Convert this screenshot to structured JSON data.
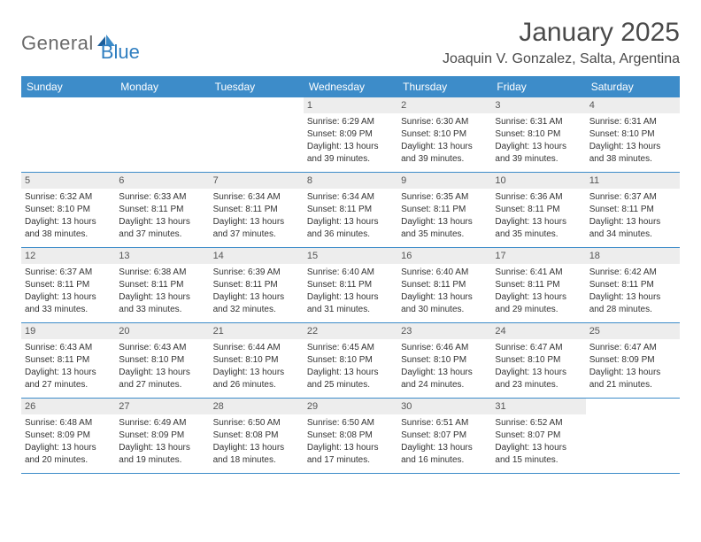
{
  "logo": {
    "text1": "General",
    "text2": "Blue"
  },
  "title": "January 2025",
  "location": "Joaquin V. Gonzalez, Salta, Argentina",
  "colors": {
    "header_bg": "#3d8cc9",
    "header_text": "#ffffff",
    "daynum_bg": "#ededed",
    "border": "#3d8cc9",
    "body_text": "#333333",
    "logo_gray": "#6a6a6a",
    "logo_blue": "#2f7ec0"
  },
  "weekdays": [
    "Sunday",
    "Monday",
    "Tuesday",
    "Wednesday",
    "Thursday",
    "Friday",
    "Saturday"
  ],
  "weeks": [
    [
      {
        "n": "",
        "lines": []
      },
      {
        "n": "",
        "lines": []
      },
      {
        "n": "",
        "lines": []
      },
      {
        "n": "1",
        "lines": [
          "Sunrise: 6:29 AM",
          "Sunset: 8:09 PM",
          "Daylight: 13 hours",
          "and 39 minutes."
        ]
      },
      {
        "n": "2",
        "lines": [
          "Sunrise: 6:30 AM",
          "Sunset: 8:10 PM",
          "Daylight: 13 hours",
          "and 39 minutes."
        ]
      },
      {
        "n": "3",
        "lines": [
          "Sunrise: 6:31 AM",
          "Sunset: 8:10 PM",
          "Daylight: 13 hours",
          "and 39 minutes."
        ]
      },
      {
        "n": "4",
        "lines": [
          "Sunrise: 6:31 AM",
          "Sunset: 8:10 PM",
          "Daylight: 13 hours",
          "and 38 minutes."
        ]
      }
    ],
    [
      {
        "n": "5",
        "lines": [
          "Sunrise: 6:32 AM",
          "Sunset: 8:10 PM",
          "Daylight: 13 hours",
          "and 38 minutes."
        ]
      },
      {
        "n": "6",
        "lines": [
          "Sunrise: 6:33 AM",
          "Sunset: 8:11 PM",
          "Daylight: 13 hours",
          "and 37 minutes."
        ]
      },
      {
        "n": "7",
        "lines": [
          "Sunrise: 6:34 AM",
          "Sunset: 8:11 PM",
          "Daylight: 13 hours",
          "and 37 minutes."
        ]
      },
      {
        "n": "8",
        "lines": [
          "Sunrise: 6:34 AM",
          "Sunset: 8:11 PM",
          "Daylight: 13 hours",
          "and 36 minutes."
        ]
      },
      {
        "n": "9",
        "lines": [
          "Sunrise: 6:35 AM",
          "Sunset: 8:11 PM",
          "Daylight: 13 hours",
          "and 35 minutes."
        ]
      },
      {
        "n": "10",
        "lines": [
          "Sunrise: 6:36 AM",
          "Sunset: 8:11 PM",
          "Daylight: 13 hours",
          "and 35 minutes."
        ]
      },
      {
        "n": "11",
        "lines": [
          "Sunrise: 6:37 AM",
          "Sunset: 8:11 PM",
          "Daylight: 13 hours",
          "and 34 minutes."
        ]
      }
    ],
    [
      {
        "n": "12",
        "lines": [
          "Sunrise: 6:37 AM",
          "Sunset: 8:11 PM",
          "Daylight: 13 hours",
          "and 33 minutes."
        ]
      },
      {
        "n": "13",
        "lines": [
          "Sunrise: 6:38 AM",
          "Sunset: 8:11 PM",
          "Daylight: 13 hours",
          "and 33 minutes."
        ]
      },
      {
        "n": "14",
        "lines": [
          "Sunrise: 6:39 AM",
          "Sunset: 8:11 PM",
          "Daylight: 13 hours",
          "and 32 minutes."
        ]
      },
      {
        "n": "15",
        "lines": [
          "Sunrise: 6:40 AM",
          "Sunset: 8:11 PM",
          "Daylight: 13 hours",
          "and 31 minutes."
        ]
      },
      {
        "n": "16",
        "lines": [
          "Sunrise: 6:40 AM",
          "Sunset: 8:11 PM",
          "Daylight: 13 hours",
          "and 30 minutes."
        ]
      },
      {
        "n": "17",
        "lines": [
          "Sunrise: 6:41 AM",
          "Sunset: 8:11 PM",
          "Daylight: 13 hours",
          "and 29 minutes."
        ]
      },
      {
        "n": "18",
        "lines": [
          "Sunrise: 6:42 AM",
          "Sunset: 8:11 PM",
          "Daylight: 13 hours",
          "and 28 minutes."
        ]
      }
    ],
    [
      {
        "n": "19",
        "lines": [
          "Sunrise: 6:43 AM",
          "Sunset: 8:11 PM",
          "Daylight: 13 hours",
          "and 27 minutes."
        ]
      },
      {
        "n": "20",
        "lines": [
          "Sunrise: 6:43 AM",
          "Sunset: 8:10 PM",
          "Daylight: 13 hours",
          "and 27 minutes."
        ]
      },
      {
        "n": "21",
        "lines": [
          "Sunrise: 6:44 AM",
          "Sunset: 8:10 PM",
          "Daylight: 13 hours",
          "and 26 minutes."
        ]
      },
      {
        "n": "22",
        "lines": [
          "Sunrise: 6:45 AM",
          "Sunset: 8:10 PM",
          "Daylight: 13 hours",
          "and 25 minutes."
        ]
      },
      {
        "n": "23",
        "lines": [
          "Sunrise: 6:46 AM",
          "Sunset: 8:10 PM",
          "Daylight: 13 hours",
          "and 24 minutes."
        ]
      },
      {
        "n": "24",
        "lines": [
          "Sunrise: 6:47 AM",
          "Sunset: 8:10 PM",
          "Daylight: 13 hours",
          "and 23 minutes."
        ]
      },
      {
        "n": "25",
        "lines": [
          "Sunrise: 6:47 AM",
          "Sunset: 8:09 PM",
          "Daylight: 13 hours",
          "and 21 minutes."
        ]
      }
    ],
    [
      {
        "n": "26",
        "lines": [
          "Sunrise: 6:48 AM",
          "Sunset: 8:09 PM",
          "Daylight: 13 hours",
          "and 20 minutes."
        ]
      },
      {
        "n": "27",
        "lines": [
          "Sunrise: 6:49 AM",
          "Sunset: 8:09 PM",
          "Daylight: 13 hours",
          "and 19 minutes."
        ]
      },
      {
        "n": "28",
        "lines": [
          "Sunrise: 6:50 AM",
          "Sunset: 8:08 PM",
          "Daylight: 13 hours",
          "and 18 minutes."
        ]
      },
      {
        "n": "29",
        "lines": [
          "Sunrise: 6:50 AM",
          "Sunset: 8:08 PM",
          "Daylight: 13 hours",
          "and 17 minutes."
        ]
      },
      {
        "n": "30",
        "lines": [
          "Sunrise: 6:51 AM",
          "Sunset: 8:07 PM",
          "Daylight: 13 hours",
          "and 16 minutes."
        ]
      },
      {
        "n": "31",
        "lines": [
          "Sunrise: 6:52 AM",
          "Sunset: 8:07 PM",
          "Daylight: 13 hours",
          "and 15 minutes."
        ]
      },
      {
        "n": "",
        "lines": []
      }
    ]
  ]
}
